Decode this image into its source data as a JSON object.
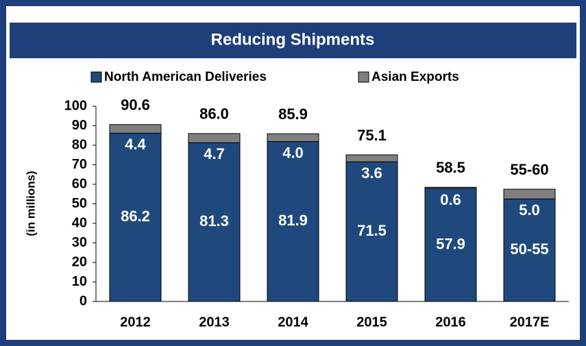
{
  "chart_data": {
    "type": "stacked_bar",
    "title": "Reducing Shipments",
    "y_label": "(in millions)",
    "categories": [
      "2012",
      "2013",
      "2014",
      "2015",
      "2016",
      "2017E"
    ],
    "series": [
      {
        "name": "North American Deliveries",
        "color": "#1f497d",
        "values": [
          86.2,
          81.3,
          81.9,
          71.5,
          57.9,
          52.5
        ],
        "value_labels": [
          "86.2",
          "81.3",
          "81.9",
          "71.5",
          "57.9",
          "50-55"
        ]
      },
      {
        "name": "Asian Exports",
        "color": "#7f7f7f",
        "values": [
          4.4,
          4.7,
          4.0,
          3.6,
          0.6,
          5.0
        ],
        "value_labels": [
          "4.4",
          "4.7",
          "4.0",
          "3.6",
          "0.6",
          "5.0"
        ]
      }
    ],
    "total_labels": [
      "90.6",
      "86.0",
      "85.9",
      "75.1",
      "58.5",
      "55-60"
    ],
    "ylim": [
      0,
      100
    ],
    "yticks": [
      0,
      10,
      20,
      30,
      40,
      50,
      60,
      70,
      80,
      90,
      100
    ],
    "legend": "top"
  }
}
